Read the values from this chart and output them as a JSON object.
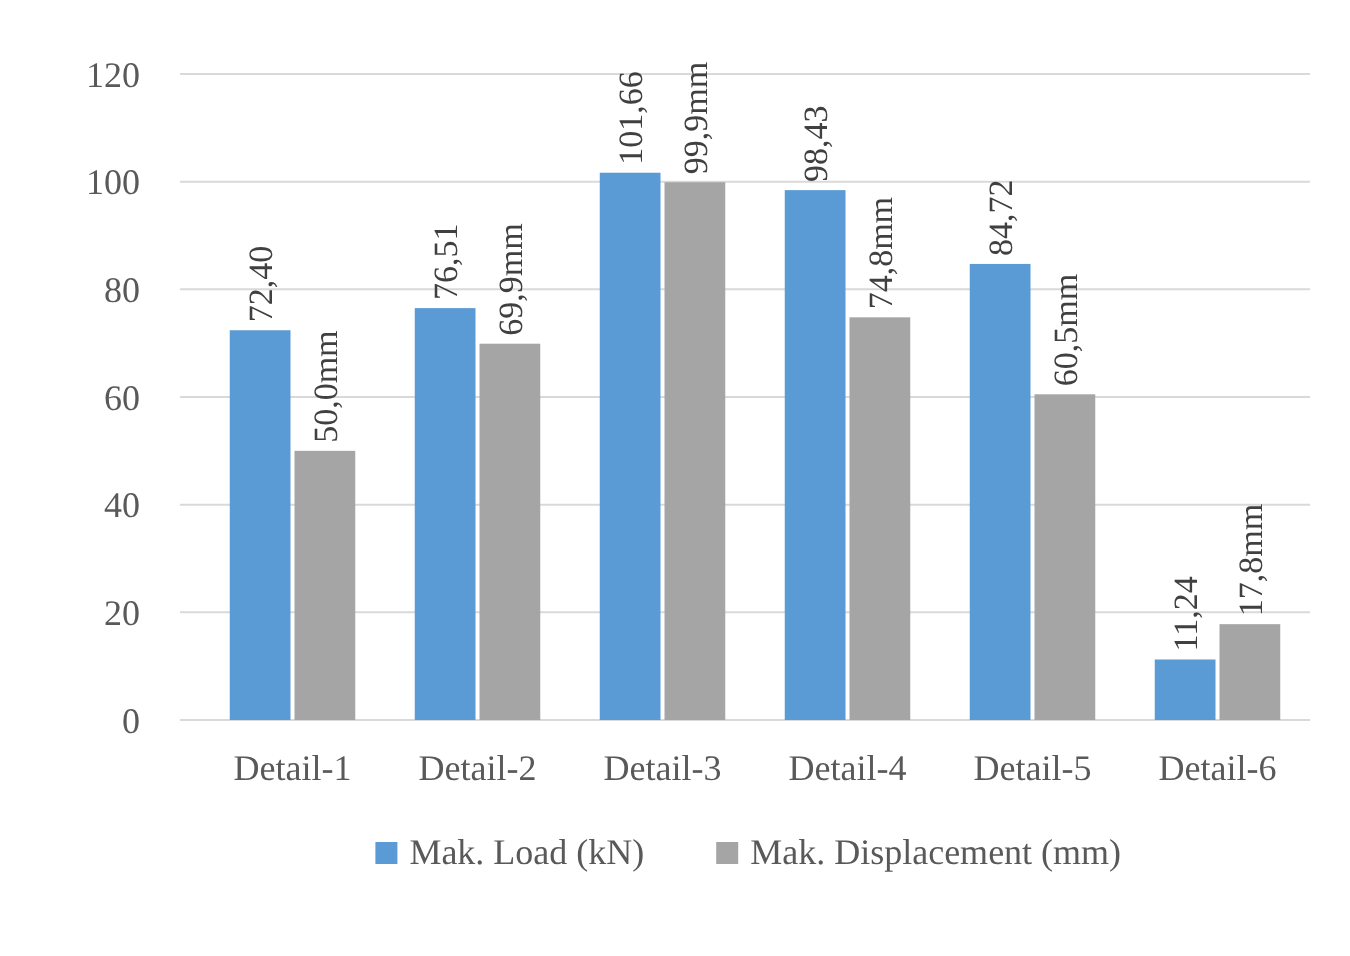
{
  "chart_data": {
    "type": "bar",
    "categories": [
      "Detail-1",
      "Detail-2",
      "Detail-3",
      "Detail-4",
      "Detail-5",
      "Detail-6"
    ],
    "series": [
      {
        "name": "Mak. Load (kN)",
        "color": "#5b9bd5",
        "values": [
          72.4,
          76.51,
          101.66,
          98.43,
          84.72,
          11.24
        ],
        "value_labels": [
          "72,40",
          "76,51",
          "101,66",
          "98,43",
          "84,72",
          "11,24"
        ]
      },
      {
        "name": "Mak. Displacement (mm)",
        "color": "#a5a5a5",
        "values": [
          50.0,
          69.9,
          99.9,
          74.8,
          60.5,
          17.8
        ],
        "value_labels": [
          "50,0mm",
          "69,9mm",
          "99,9mm",
          "74,8mm",
          "60,5mm",
          "17,8mm"
        ]
      }
    ],
    "ylim": [
      0,
      120
    ],
    "yticks": [
      0,
      20,
      40,
      60,
      80,
      100,
      120
    ],
    "grid": "y",
    "legend": "bottom"
  }
}
